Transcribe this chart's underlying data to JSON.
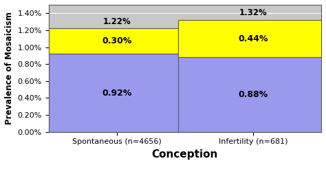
{
  "categories": [
    "Spontaneous (n=4656)",
    "Infertility (n=681)"
  ],
  "confined_placental": [
    0.92,
    0.88
  ],
  "true_mosaic": [
    0.3,
    0.44
  ],
  "totals": [
    "1.22%",
    "1.32%"
  ],
  "confined_labels": [
    "0.92%",
    "0.88%"
  ],
  "true_labels": [
    "0.30%",
    "0.44%"
  ],
  "confined_color": "#9999EE",
  "true_color": "#FFFF00",
  "bar_edge_color": "#555555",
  "ylabel": "Prevalence of Mosaicism",
  "xlabel": "Conception",
  "ylim_max": 0.015,
  "yticks": [
    0.0,
    0.002,
    0.004,
    0.006,
    0.008,
    0.01,
    0.012,
    0.014
  ],
  "ytick_labels": [
    "0.00%",
    "0.20%",
    "0.40%",
    "0.60%",
    "0.80%",
    "1.00%",
    "1.20%",
    "1.40%"
  ],
  "plot_bg_color": "#C8C8C8",
  "fig_bg_color": "#FFFFFF",
  "ylabel_fontsize": 8.5,
  "xlabel_fontsize": 11,
  "bar_label_fontsize": 9,
  "total_label_fontsize": 8.5,
  "tick_fontsize": 8,
  "legend_fontsize": 8,
  "bar_width": 0.55,
  "bar_positions": [
    0.25,
    0.75
  ]
}
